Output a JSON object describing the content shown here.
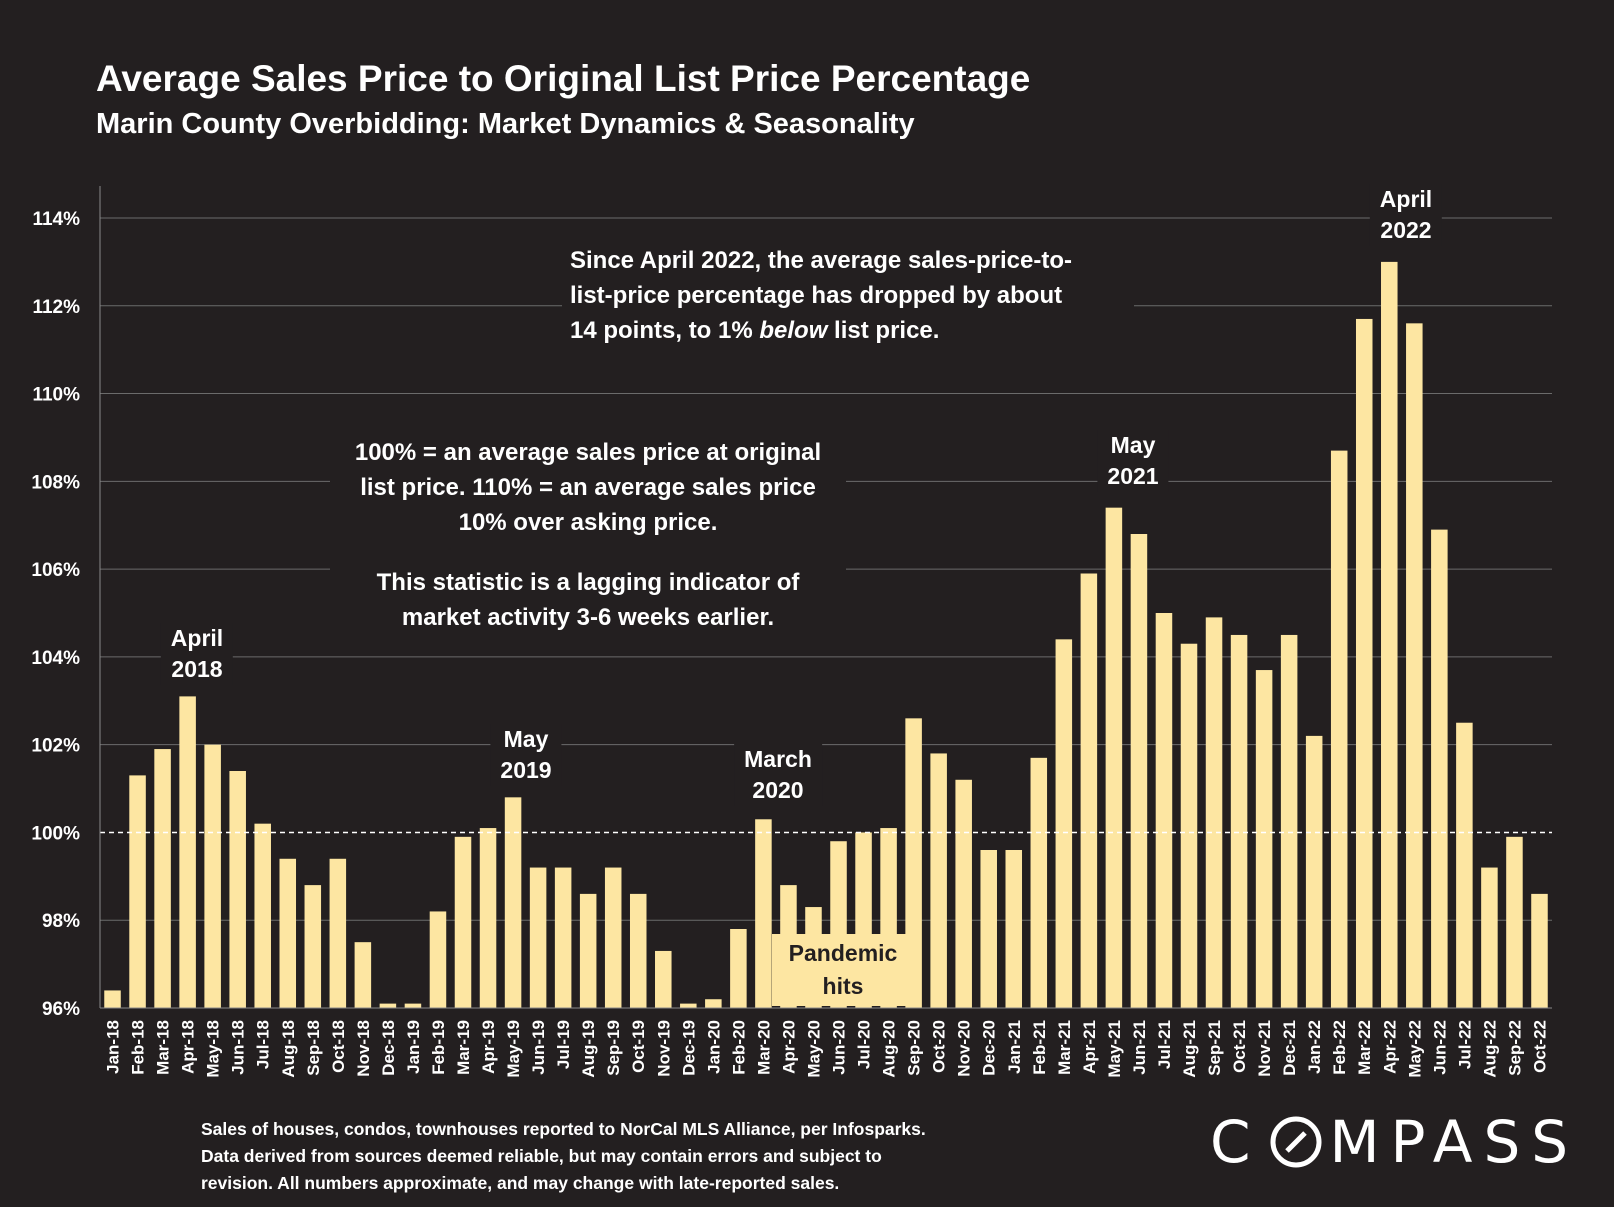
{
  "title": "Average Sales Price to Original List Price Percentage",
  "subtitle": "Marin County Overbidding: Market Dynamics & Seasonality",
  "notes": {
    "since_april_line1": "Since April 2022, the average sales-price-to-",
    "since_april_line2": "list-price percentage has dropped by about",
    "since_april_line3_pre": "14 points, to 1% ",
    "since_april_line3_em": "below",
    "since_april_line3_post": " list price.",
    "explain_line1": "100% = an average sales price at original",
    "explain_line2": "list price. 110% = an average sales price",
    "explain_line3": "10% over asking price.",
    "lagging_line1": "This statistic is a lagging indicator of",
    "lagging_line2": "market activity 3-6 weeks earlier."
  },
  "peak_labels": {
    "april_2018": [
      "April",
      "2018"
    ],
    "may_2019": [
      "May",
      "2019"
    ],
    "march_2020": [
      "March",
      "2020"
    ],
    "may_2021": [
      "May",
      "2021"
    ],
    "april_2022": [
      "April",
      "2022"
    ]
  },
  "pandemic": [
    "Pandemic",
    "hits"
  ],
  "footnote": {
    "line1": "Sales of houses, condos, townhouses reported to NorCal MLS Alliance, per Infosparks.",
    "line2": "Data derived from sources deemed reliable, but may contain errors and subject to",
    "line3": "revision. All numbers approximate, and may change with late-reported sales."
  },
  "logo": {
    "pre": "C",
    "post": "MPASS"
  },
  "colors": {
    "background": "#231f20",
    "bar": "#fde6a2",
    "grid": "#6b6b6b",
    "text": "#ffffff"
  },
  "chart_data": {
    "type": "bar",
    "title": "Average Sales Price to Original List Price Percentage",
    "subtitle": "Marin County Overbidding: Market Dynamics & Seasonality",
    "ylim": [
      96,
      114
    ],
    "yticks": [
      96,
      98,
      100,
      102,
      104,
      106,
      108,
      110,
      112,
      114
    ],
    "ytick_labels": [
      "96%",
      "98%",
      "100%",
      "102%",
      "104%",
      "106%",
      "108%",
      "110%",
      "112%",
      "114%"
    ],
    "reference_line": 100,
    "grid": true,
    "categories": [
      "Jan-18",
      "Feb-18",
      "Mar-18",
      "Apr-18",
      "May-18",
      "Jun-18",
      "Jul-18",
      "Aug-18",
      "Sep-18",
      "Oct-18",
      "Nov-18",
      "Dec-18",
      "Jan-19",
      "Feb-19",
      "Mar-19",
      "Apr-19",
      "May-19",
      "Jun-19",
      "Jul-19",
      "Aug-19",
      "Sep-19",
      "Oct-19",
      "Nov-19",
      "Dec-19",
      "Jan-20",
      "Feb-20",
      "Mar-20",
      "Apr-20",
      "May-20",
      "Jun-20",
      "Jul-20",
      "Aug-20",
      "Sep-20",
      "Oct-20",
      "Nov-20",
      "Dec-20",
      "Jan-21",
      "Feb-21",
      "Mar-21",
      "Apr-21",
      "May-21",
      "Jun-21",
      "Jul-21",
      "Aug-21",
      "Sep-21",
      "Oct-21",
      "Nov-21",
      "Dec-21",
      "Jan-22",
      "Feb-22",
      "Mar-22",
      "Apr-22",
      "May-22",
      "Jun-22",
      "Jul-22",
      "Aug-22",
      "Sep-22",
      "Oct-22"
    ],
    "values": [
      96.4,
      101.3,
      101.9,
      103.1,
      102.0,
      101.4,
      100.2,
      99.4,
      98.8,
      99.4,
      97.5,
      96.1,
      96.1,
      98.2,
      99.9,
      100.1,
      100.8,
      99.2,
      99.2,
      98.6,
      99.2,
      98.6,
      97.3,
      96.1,
      96.2,
      97.8,
      100.3,
      98.8,
      98.3,
      99.8,
      100.0,
      100.1,
      102.6,
      101.8,
      101.2,
      99.6,
      99.6,
      101.7,
      104.4,
      105.9,
      107.4,
      106.8,
      105.0,
      104.3,
      104.9,
      104.5,
      103.7,
      104.5,
      102.2,
      108.7,
      111.7,
      113.0,
      111.6,
      106.9,
      102.5,
      99.2,
      99.9,
      98.6
    ]
  }
}
